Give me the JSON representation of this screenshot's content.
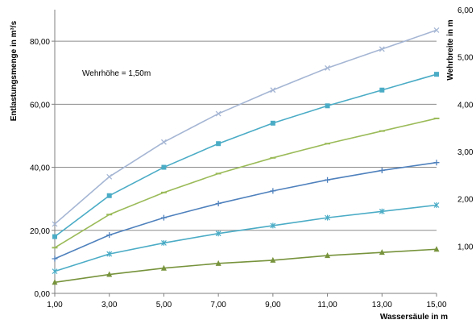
{
  "chart_data": {
    "type": "line",
    "xlabel": "Wassersäule in m",
    "ylabel": "Entlastungsmenge in m³/s",
    "y2label": "Wehrbreite in m",
    "annotation": "Wehrhöhe = 1,50m",
    "x": [
      1,
      3,
      5,
      7,
      9,
      11,
      13,
      15
    ],
    "x_tick_labels": [
      "1,00",
      "3,00",
      "5,00",
      "7,00",
      "9,00",
      "11,00",
      "13,00",
      "15,00"
    ],
    "xlim": [
      1,
      15
    ],
    "ylim": [
      0,
      90
    ],
    "y_tick_labels": [
      "0,00",
      "20,00",
      "40,00",
      "60,00",
      "80,00"
    ],
    "y_ticks": [
      0,
      20,
      40,
      60,
      80
    ],
    "y2lim": [
      0,
      6
    ],
    "y2_tick_labels": [
      "1,00",
      "2,00",
      "3,00",
      "4,00",
      "5,00",
      "6,00"
    ],
    "y2_ticks": [
      1,
      2,
      3,
      4,
      5,
      6
    ],
    "grid": true,
    "legend": "none",
    "series": [
      {
        "color": "#a5b6d4",
        "marker": "x",
        "values": [
          22.0,
          37.0,
          48.0,
          57.0,
          64.5,
          71.5,
          77.5,
          83.5
        ]
      },
      {
        "color": "#4bacc6",
        "marker": "square",
        "values": [
          18.0,
          31.0,
          40.0,
          47.5,
          54.0,
          59.5,
          64.5,
          69.5
        ]
      },
      {
        "color": "#9bbb59",
        "marker": "dash",
        "values": [
          14.5,
          25.0,
          32.0,
          38.0,
          43.0,
          47.5,
          51.5,
          55.5
        ]
      },
      {
        "color": "#4f81bd",
        "marker": "plus",
        "values": [
          11.0,
          18.5,
          24.0,
          28.5,
          32.5,
          36.0,
          39.0,
          41.5
        ]
      },
      {
        "color": "#4bacc6",
        "marker": "asterisk",
        "values": [
          7.0,
          12.5,
          16.0,
          19.0,
          21.5,
          24.0,
          26.0,
          28.0
        ]
      },
      {
        "color": "#77933c",
        "marker": "triangle",
        "values": [
          3.5,
          6.0,
          8.0,
          9.5,
          10.5,
          12.0,
          13.0,
          14.0
        ]
      }
    ]
  }
}
